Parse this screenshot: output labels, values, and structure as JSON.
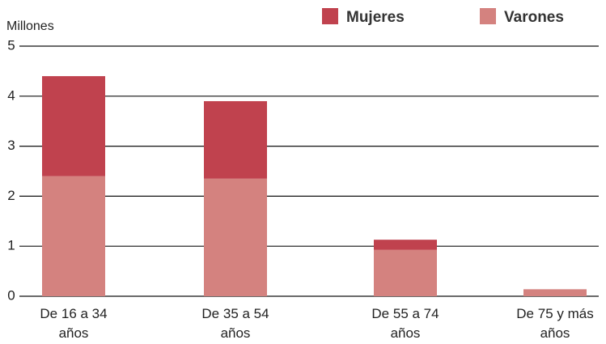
{
  "chart_data": {
    "type": "stacked_bar",
    "y_label": "Millones",
    "categories": [
      "De 16 a 34 años",
      "De 35 a 54 años",
      "De 55 a 74 años",
      "De 75 y más años"
    ],
    "series": [
      {
        "name": "Mujeres",
        "color": "#c0424e",
        "values": [
          2.0,
          1.55,
          0.2,
          0
        ]
      },
      {
        "name": "Varones",
        "color": "#d4827f",
        "values": [
          2.4,
          2.35,
          0.93,
          0.14
        ]
      }
    ],
    "ylim": [
      0,
      5
    ],
    "yticks": [
      0,
      1,
      2,
      3,
      4,
      5
    ],
    "grid": true,
    "legend": "top-right"
  }
}
